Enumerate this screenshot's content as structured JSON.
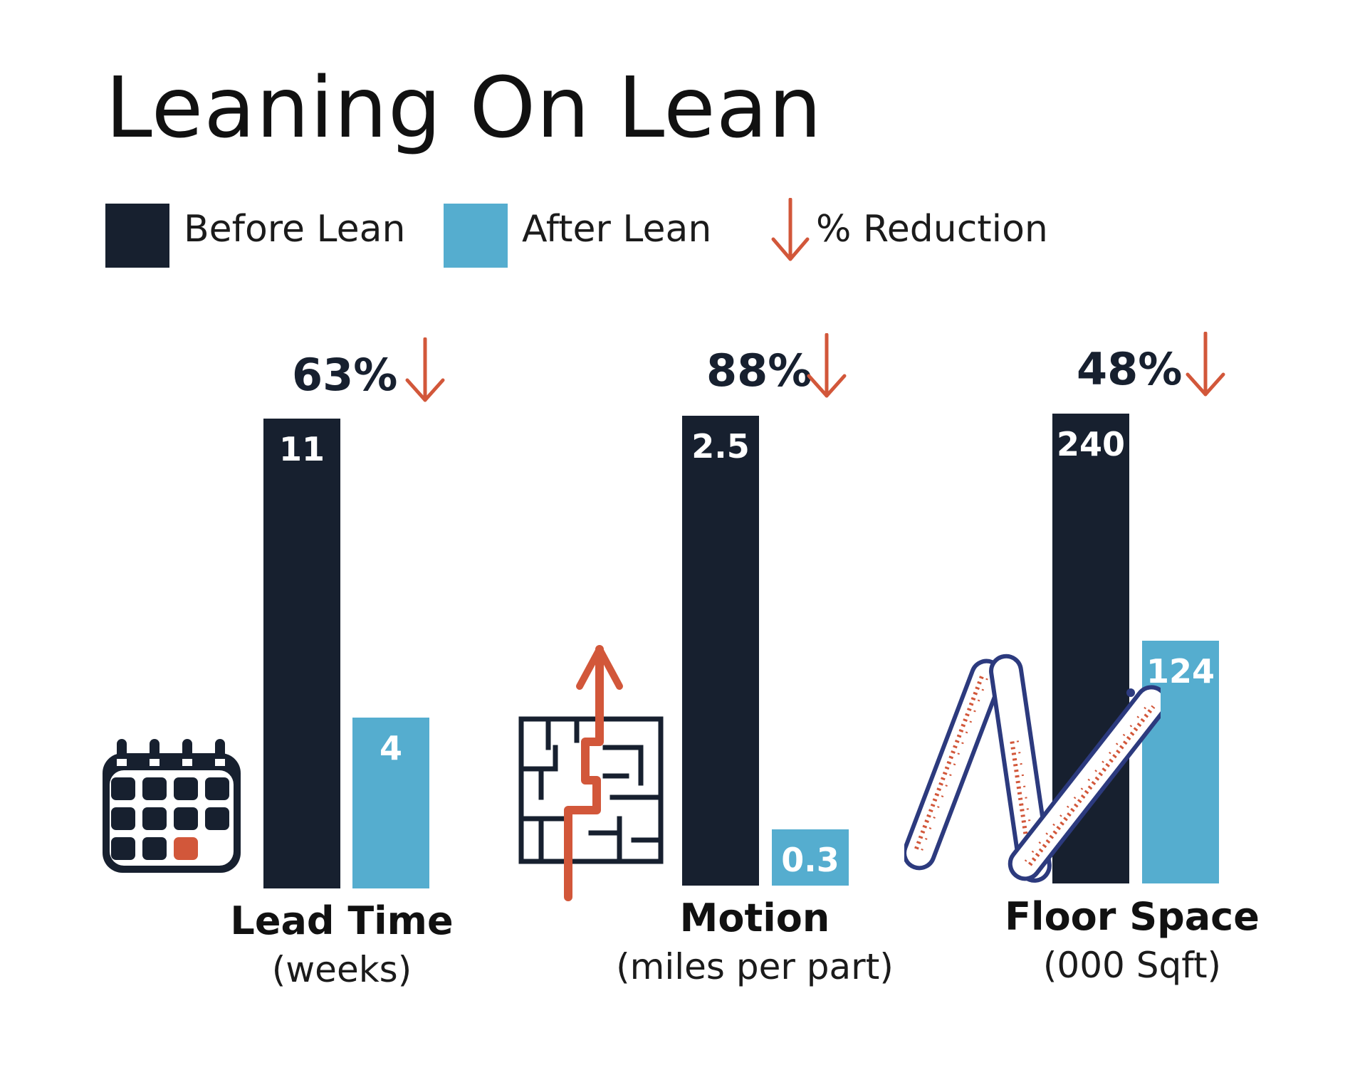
{
  "title": "Leaning On Lean",
  "legend": {
    "before": {
      "label": "Before Lean",
      "color": "#17202f"
    },
    "after": {
      "label": "After Lean",
      "color": "#55adcf"
    },
    "reduction": {
      "label": "% Reduction",
      "color": "#d2573a",
      "icon": "down-arrow-icon"
    }
  },
  "chart_data": [
    {
      "type": "bar",
      "title": "Lead Time",
      "unit": "(weeks)",
      "categories": [
        "Before Lean",
        "After Lean"
      ],
      "values": [
        11,
        4
      ],
      "labels": [
        "11",
        "4"
      ],
      "reduction": "63%",
      "icon": "calendar-icon"
    },
    {
      "type": "bar",
      "title": "Motion",
      "unit": "(miles per part)",
      "categories": [
        "Before Lean",
        "After Lean"
      ],
      "values": [
        2.5,
        0.3
      ],
      "labels": [
        "2.5",
        "0.3"
      ],
      "reduction": "88%",
      "icon": "maze-icon"
    },
    {
      "type": "bar",
      "title": "Floor Space",
      "unit": "(000 Sqft)",
      "categories": [
        "Before Lean",
        "After Lean"
      ],
      "values": [
        240,
        124
      ],
      "labels": [
        "240",
        "124"
      ],
      "reduction": "48%",
      "icon": "folding-ruler-icon"
    }
  ]
}
